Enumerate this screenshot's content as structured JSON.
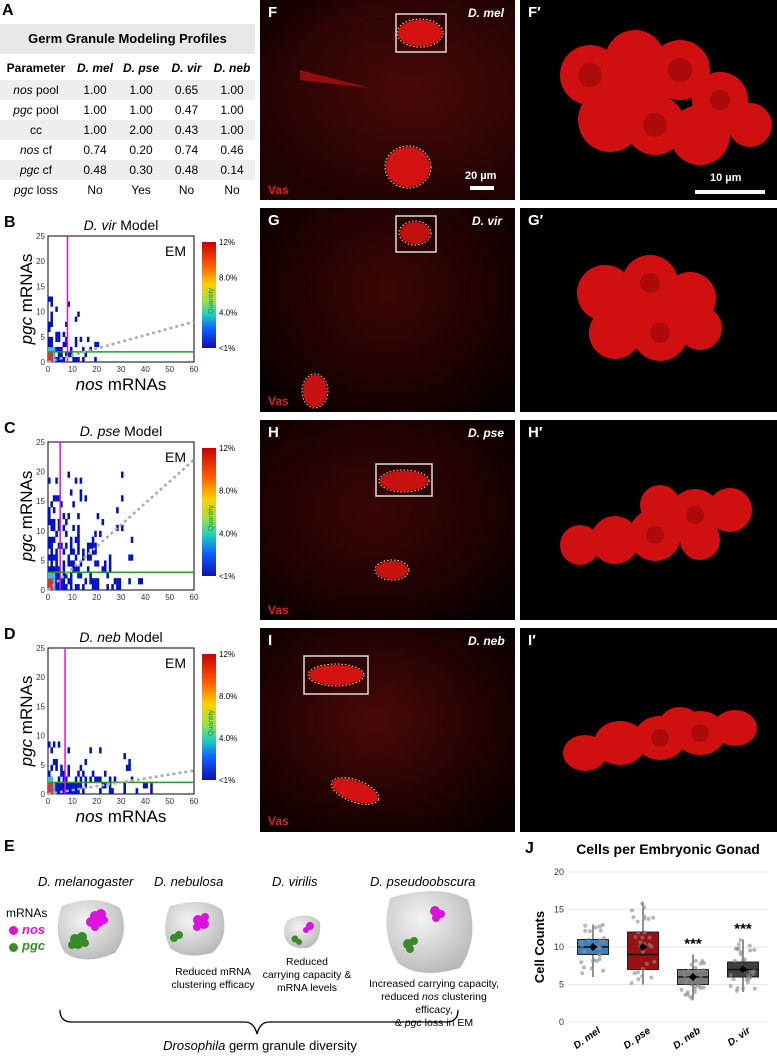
{
  "panel_labels": {
    "A": "A",
    "B": "B",
    "C": "C",
    "D": "D",
    "E": "E",
    "F": "F",
    "F2": "F′",
    "G": "G",
    "G2": "G′",
    "H": "H",
    "H2": "H′",
    "I": "I",
    "I2": "I′",
    "J": "J"
  },
  "table": {
    "title": "Germ Granule Modeling Profiles",
    "headers": [
      "Parameter",
      "D. mel",
      "D. pse",
      "D. vir",
      "D. neb"
    ],
    "rows": [
      {
        "param_it": "nos",
        "param_rest": " pool",
        "values": [
          "1.00",
          "1.00",
          "0.65",
          "1.00"
        ]
      },
      {
        "param_it": "pgc",
        "param_rest": " pool",
        "values": [
          "1.00",
          "1.00",
          "0.47",
          "1.00"
        ]
      },
      {
        "param_it": "",
        "param_rest": "cc",
        "values": [
          "1.00",
          "2.00",
          "0.43",
          "1.00"
        ]
      },
      {
        "param_it": "nos",
        "param_rest": " cf",
        "values": [
          "0.74",
          "0.20",
          "0.74",
          "0.46"
        ]
      },
      {
        "param_it": "pgc",
        "param_rest": " cf",
        "values": [
          "0.48",
          "0.30",
          "0.48",
          "0.14"
        ]
      },
      {
        "param_it": "pgc",
        "param_rest": " loss",
        "values": [
          "No",
          "Yes",
          "No",
          "No"
        ]
      }
    ]
  },
  "heatmaps": [
    {
      "title_it": "D. vir",
      "title_rest": " Model",
      "em": "EM"
    },
    {
      "title_it": "D. pse",
      "title_rest": " Model",
      "em": "EM"
    },
    {
      "title_it": "D. neb",
      "title_rest": " Model",
      "em": "EM"
    }
  ],
  "heatmap_axes": {
    "ylabel_it": "pgc",
    "ylabel_rest": " mRNAs",
    "xlabel_it": "nos",
    "xlabel_rest": " mRNAs",
    "xticks": [
      "0",
      "10",
      "20",
      "30",
      "40",
      "50",
      "60"
    ],
    "yticks": [
      "0",
      "5",
      "10",
      "15",
      "20",
      "25"
    ],
    "colorbar_ticks": [
      "12%",
      "8.0%",
      "4.0%",
      "<1%"
    ],
    "colorbar_label": "Quantity"
  },
  "micrographs": {
    "F": {
      "species": "D. mel",
      "stain": "Vas",
      "scale": "20 µm"
    },
    "F2": {
      "scale": "10 µm"
    },
    "G": {
      "species": "D. vir",
      "stain": "Vas"
    },
    "H": {
      "species": "D. pse",
      "stain": "Vas"
    },
    "I": {
      "species": "D. neb",
      "stain": "Vas"
    }
  },
  "schematic": {
    "species": [
      "D. melanogaster",
      "D. nebulosa",
      "D. virilis",
      "D. pseudoobscura"
    ],
    "legend_title": "mRNAs",
    "legend_nos": "nos",
    "legend_pgc": "pgc",
    "caption_neb": [
      "Reduced mRNA",
      "clustering efficacy"
    ],
    "caption_vir": [
      "Reduced",
      "carrying capacity &",
      "mRNA levels"
    ],
    "caption_pse_1": "Increased carrying capacity,",
    "caption_pse_2a": "reduced ",
    "caption_pse_2b": "nos",
    "caption_pse_2c": " clustering efficacy,",
    "caption_pse_3a": "& ",
    "caption_pse_3b": "pgc",
    "caption_pse_3c": " loss in EM",
    "footer_it": "Drosophila",
    "footer_rest": " germ granule diversity",
    "colors": {
      "nos": "#e010e0",
      "pgc": "#3a8a2a",
      "granule": "#d8d8d8"
    }
  },
  "chart_data": {
    "type": "box",
    "title": "Cells per Embryonic Gonad",
    "ylabel": "Cell Counts",
    "categories": [
      "D. mel",
      "D. pse",
      "D. neb",
      "D. vir"
    ],
    "yticks": [
      "0",
      "5",
      "10",
      "15",
      "20"
    ],
    "ylim": [
      0,
      20
    ],
    "boxes": [
      {
        "name": "D. mel",
        "q1": 9,
        "median": 10,
        "q3": 11,
        "whisker_low": 6,
        "whisker_high": 13,
        "mean": 10,
        "color": "#3b82c4",
        "annotation": ""
      },
      {
        "name": "D. pse",
        "q1": 7,
        "median": 9,
        "q3": 12,
        "whisker_low": 5,
        "whisker_high": 16,
        "mean": 10,
        "color": "#9b1010",
        "annotation": ""
      },
      {
        "name": "D. neb",
        "q1": 5,
        "median": 6,
        "q3": 7,
        "whisker_low": 3,
        "whisker_high": 9,
        "mean": 6,
        "color": "#7a7a7a",
        "annotation": "***"
      },
      {
        "name": "D. vir",
        "q1": 6,
        "median": 7,
        "q3": 8,
        "whisker_low": 4,
        "whisker_high": 11,
        "mean": 7,
        "color": "#404040",
        "annotation": "***"
      }
    ],
    "grid": true
  }
}
